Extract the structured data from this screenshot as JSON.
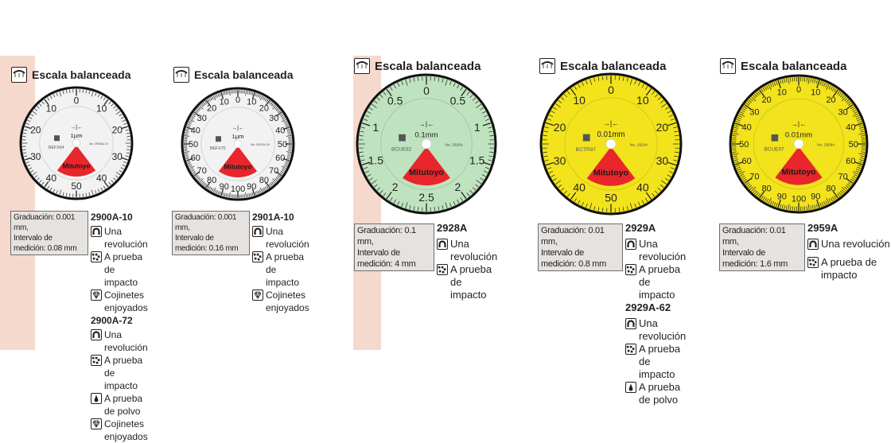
{
  "header_label": "Escala balanceada",
  "colors": {
    "accent_strip": "#f5d9cc",
    "red_sector": "#e8262b",
    "dial_white": "#f2f2f2",
    "dial_green": "#bfe3bf",
    "dial_yellow": "#f2e31c",
    "spec_box": "#e6e2df"
  },
  "panels": [
    {
      "dial": {
        "face": "white",
        "unit": "1µm",
        "serial": "BEFX64",
        "no": "No. 2900A-10",
        "brand": "Mitutoyo",
        "labels_right": [
          "0",
          "10",
          "20",
          "30",
          "40",
          "50"
        ],
        "labels_left": [
          "10",
          "20",
          "30",
          "40"
        ],
        "label_step_deg": 36
      },
      "spec": {
        "graduation": "Graduación: 0.001 mm,",
        "range": "Intervalo de medición: 0.08 mm"
      },
      "models": [
        {
          "name": "2900A-10",
          "features": [
            {
              "icon": "one-revolution-icon",
              "label": "Una revolución"
            },
            {
              "icon": "shock-proof-icon",
              "label": "A prueba de impacto"
            },
            {
              "icon": "jewel-bearing-icon",
              "label": "Cojinetes enjoyados"
            }
          ]
        },
        {
          "name": "2900A-72",
          "features": [
            {
              "icon": "one-revolution-icon",
              "label": "Una revolución"
            },
            {
              "icon": "shock-proof-icon",
              "label": "A prueba de impacto"
            },
            {
              "icon": "dust-proof-icon",
              "label": "A prueba de polvo"
            },
            {
              "icon": "jewel-bearing-icon",
              "label": "Cojinetes enjoyados"
            }
          ]
        }
      ]
    },
    {
      "dial": {
        "face": "white",
        "unit": "1µm",
        "serial": "BEFX70",
        "no": "No. 2901A-10",
        "brand": "Mitutoyo",
        "labels_right": [
          "0",
          "10",
          "20",
          "30",
          "40",
          "50",
          "60",
          "70",
          "80",
          "90",
          "100"
        ],
        "labels_left": [
          "10",
          "20",
          "30",
          "40",
          "50",
          "60",
          "70",
          "80",
          "90"
        ],
        "label_step_deg": 18
      },
      "spec": {
        "graduation": "Graduación: 0.001 mm,",
        "range": "Intervalo de medición: 0.16 mm"
      },
      "models": [
        {
          "name": "2901A-10",
          "features": [
            {
              "icon": "one-revolution-icon",
              "label": "Una revolución"
            },
            {
              "icon": "shock-proof-icon",
              "label": "A prueba de impacto"
            },
            {
              "icon": "jewel-bearing-icon",
              "label": "Cojinetes enjoyados"
            }
          ]
        }
      ]
    },
    {
      "dial": {
        "face": "green",
        "unit": "0.1mm",
        "serial": "BCUE82",
        "no": "No. 2928A",
        "brand": "Mitutoyo",
        "labels_right": [
          "0",
          "0.5",
          "1",
          "1.5",
          "2",
          "2.5"
        ],
        "labels_left": [
          "0.5",
          "1",
          "1.5",
          "2"
        ],
        "label_step_deg": 36
      },
      "spec": {
        "graduation": "Graduación: 0.1 mm,",
        "range": "Intervalo de medición: 4 mm"
      },
      "models": [
        {
          "name": "2928A",
          "features": [
            {
              "icon": "one-revolution-icon",
              "label": "Una revolución"
            },
            {
              "icon": "shock-proof-icon",
              "label": "A prueba de impacto"
            }
          ]
        }
      ]
    },
    {
      "dial": {
        "face": "yellow",
        "unit": "0.01mm",
        "serial": "BCTR97",
        "no": "No. 2929A",
        "brand": "Mitutoyo",
        "labels_right": [
          "0",
          "10",
          "20",
          "30",
          "40",
          "50"
        ],
        "labels_left": [
          "10",
          "20",
          "30",
          "40"
        ],
        "label_step_deg": 36
      },
      "spec": {
        "graduation": "Graduación: 0.01 mm,",
        "range": "Intervalo de medición: 0.8 mm"
      },
      "models": [
        {
          "name": "2929A",
          "features": [
            {
              "icon": "one-revolution-icon",
              "label": "Una revolución"
            },
            {
              "icon": "shock-proof-icon",
              "label": "A prueba de impacto"
            }
          ]
        },
        {
          "name": "2929A-62",
          "features": [
            {
              "icon": "one-revolution-icon",
              "label": "Una revolución"
            },
            {
              "icon": "shock-proof-icon",
              "label": "A prueba de impacto"
            },
            {
              "icon": "dust-proof-icon",
              "label": "A prueba de polvo"
            }
          ]
        }
      ]
    },
    {
      "dial": {
        "face": "yellow",
        "unit": "0.01mm",
        "serial": "BCUE97",
        "no": "No. 2959A",
        "brand": "Mitutoyo",
        "labels_right": [
          "0",
          "10",
          "20",
          "30",
          "40",
          "50",
          "60",
          "70",
          "80",
          "90",
          "100"
        ],
        "labels_left": [
          "10",
          "20",
          "30",
          "40",
          "50",
          "60",
          "70",
          "80",
          "90"
        ],
        "label_step_deg": 18
      },
      "spec": {
        "graduation": "Graduación: 0.01 mm,",
        "range": "Intervalo de medición: 1.6 mm"
      },
      "models": [
        {
          "name": "2959A",
          "features": [
            {
              "icon": "one-revolution-icon",
              "label": "Una revolución"
            },
            {
              "icon": "shock-proof-icon",
              "label": "A prueba de\nimpacto"
            }
          ]
        }
      ]
    }
  ]
}
